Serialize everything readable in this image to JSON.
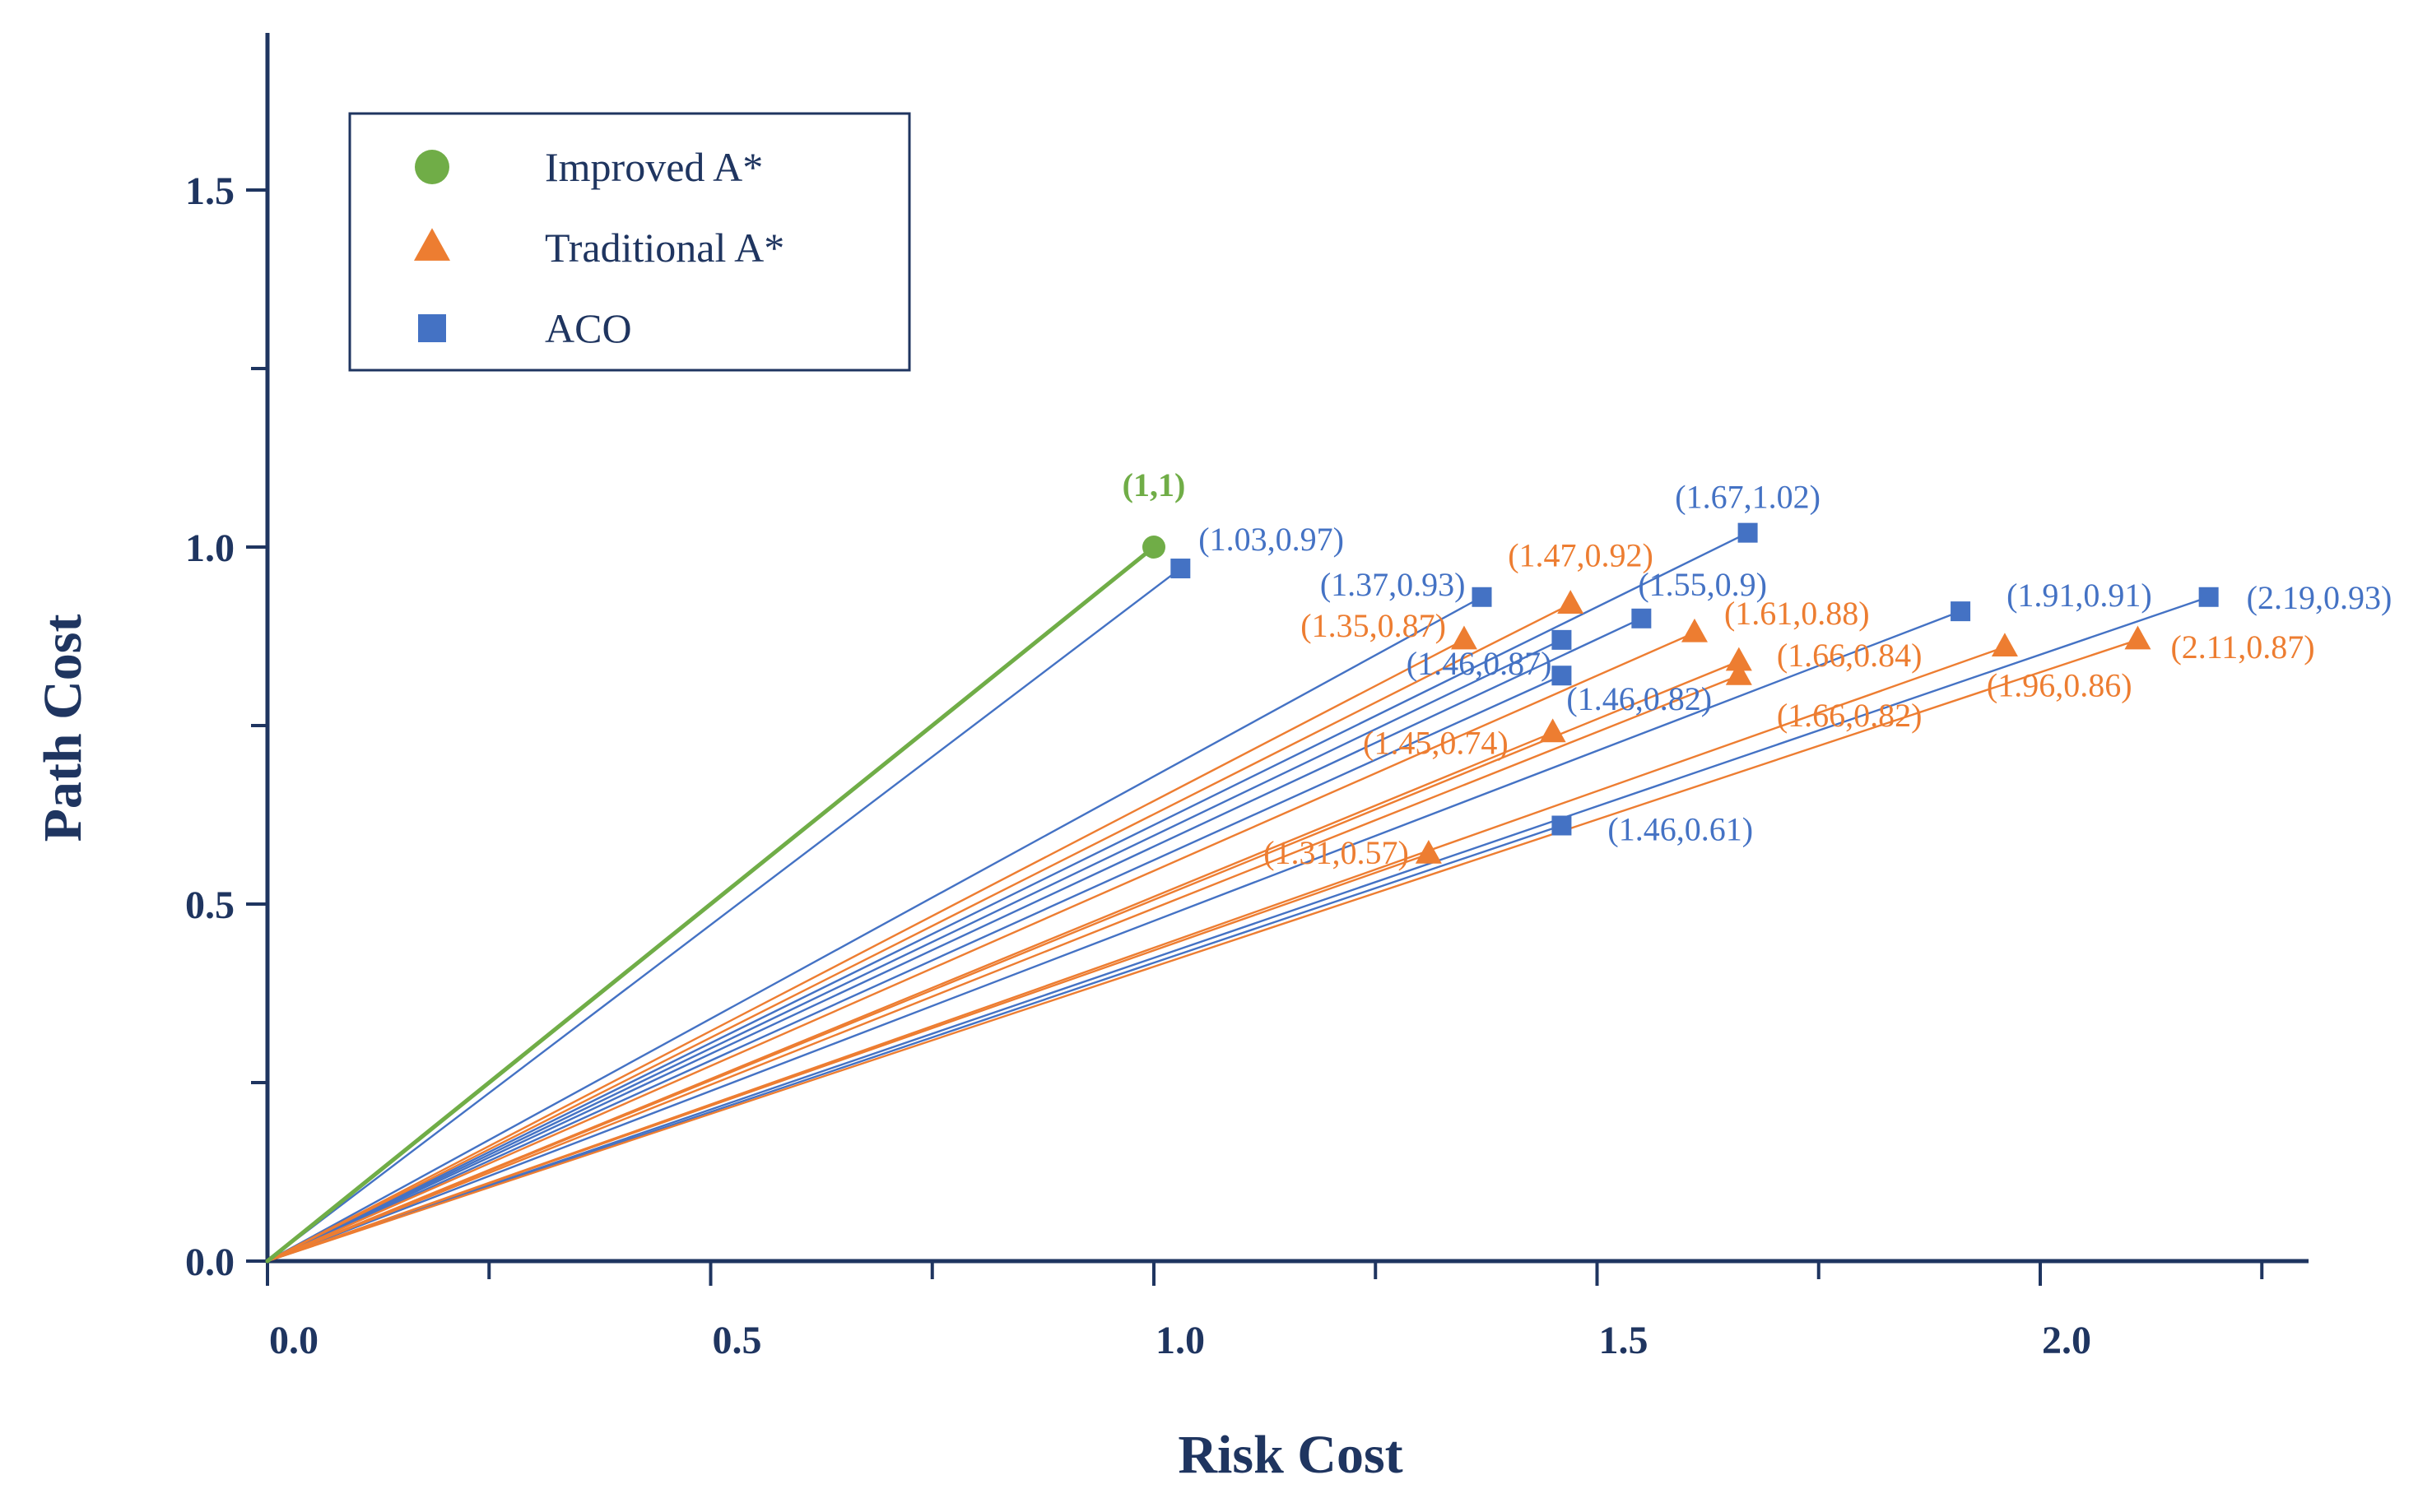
{
  "chart_data": {
    "type": "scatter",
    "title": "",
    "xlabel": "Risk Cost",
    "ylabel": "Path Cost",
    "xlim": [
      0,
      2.3
    ],
    "ylim": [
      0,
      1.72
    ],
    "xticks": [
      0.0,
      0.5,
      1.0,
      1.5,
      2.0
    ],
    "xtick_labels": [
      "0.0",
      "0.5",
      "1.0",
      "1.5",
      "2.0"
    ],
    "yticks": [
      0.0,
      0.5,
      1.0,
      1.5
    ],
    "ytick_labels": [
      "0.0",
      "0.5",
      "1.0",
      "1.5"
    ],
    "lines_from_origin": true,
    "legend_position": "top-left",
    "series": [
      {
        "name": "Improved A*",
        "marker": "circle",
        "color": "#70ad47",
        "points": [
          {
            "x": 1.0,
            "y": 1.0,
            "label": "(1,1)"
          }
        ]
      },
      {
        "name": "Traditional A*",
        "marker": "triangle",
        "color": "#ed7d31",
        "points": [
          {
            "x": 1.47,
            "y": 0.92,
            "label": "(1.47,0.92)"
          },
          {
            "x": 1.35,
            "y": 0.87,
            "label": "(1.35,0.87)"
          },
          {
            "x": 1.61,
            "y": 0.88,
            "label": "(1.61,0.88)"
          },
          {
            "x": 1.66,
            "y": 0.84,
            "label": "(1.66,0.84)"
          },
          {
            "x": 1.66,
            "y": 0.82,
            "label": "(1.66,0.82)"
          },
          {
            "x": 1.45,
            "y": 0.74,
            "label": "(1.45,0.74)"
          },
          {
            "x": 1.96,
            "y": 0.86,
            "label": "(1.96,0.86)"
          },
          {
            "x": 2.11,
            "y": 0.87,
            "label": "(2.11,0.87)"
          },
          {
            "x": 1.31,
            "y": 0.57,
            "label": "(1.31,0.57)"
          }
        ]
      },
      {
        "name": "ACO",
        "marker": "square",
        "color": "#4472c4",
        "points": [
          {
            "x": 1.03,
            "y": 0.97,
            "label": "(1.03,0.97)"
          },
          {
            "x": 1.67,
            "y": 1.02,
            "label": "(1.67,1.02)"
          },
          {
            "x": 1.37,
            "y": 0.93,
            "label": "(1.37,0.93)"
          },
          {
            "x": 1.55,
            "y": 0.9,
            "label": "(1.55,0.9)"
          },
          {
            "x": 1.46,
            "y": 0.87,
            "label": "(1.46,0.87)"
          },
          {
            "x": 1.46,
            "y": 0.82,
            "label": "(1.46,0.82)"
          },
          {
            "x": 1.91,
            "y": 0.91,
            "label": "(1.91,0.91)"
          },
          {
            "x": 2.19,
            "y": 0.93,
            "label": "(2.19,0.93)"
          },
          {
            "x": 1.46,
            "y": 0.61,
            "label": "(1.46,0.61)"
          }
        ]
      }
    ]
  }
}
